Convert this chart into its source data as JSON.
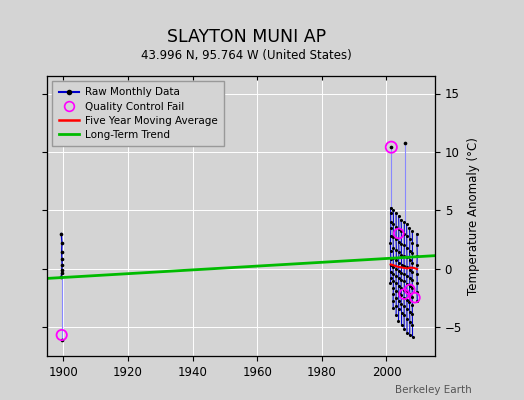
{
  "title": "SLAYTON MUNI AP",
  "subtitle": "43.996 N, 95.764 W (United States)",
  "ylabel": "Temperature Anomaly (°C)",
  "attribution": "Berkeley Earth",
  "xlim": [
    1895,
    2015
  ],
  "ylim": [
    -7.5,
    16.5
  ],
  "yticks": [
    -5,
    0,
    5,
    10,
    15
  ],
  "xticks": [
    1900,
    1920,
    1940,
    1960,
    1980,
    2000
  ],
  "colors": {
    "raw_line": "#0000cc",
    "raw_line_light": "#8888ff",
    "raw_dot": "#000000",
    "qc_fail": "#ff00ff",
    "five_year": "#ff0000",
    "trend": "#00bb00",
    "background": "#d4d4d4",
    "grid": "#ffffff"
  },
  "long_term_trend": {
    "x": [
      1895,
      2015
    ],
    "y": [
      -0.85,
      1.1
    ]
  }
}
